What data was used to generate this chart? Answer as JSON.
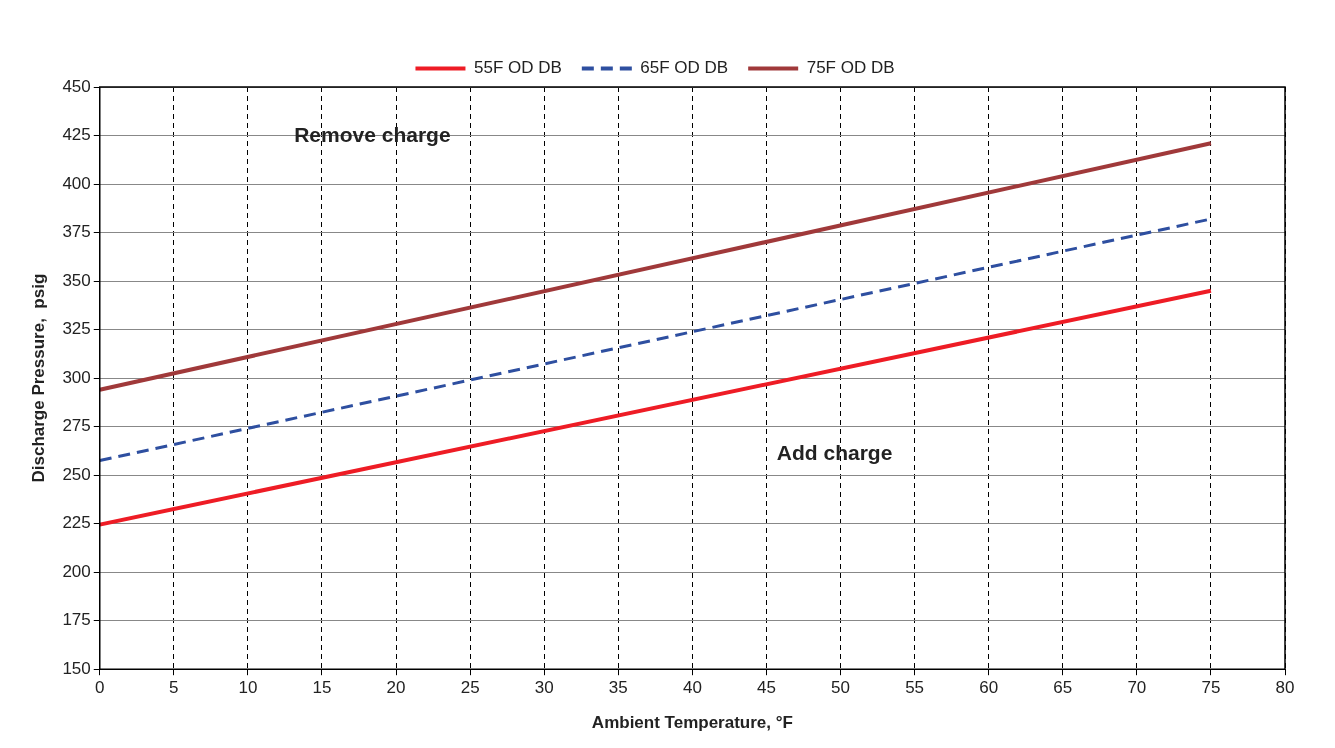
{
  "chart_data": {
    "type": "line",
    "xlabel": "Ambient Temperature, °F",
    "ylabel": "Discharge Pressure,  psig",
    "xlim": [
      0,
      80
    ],
    "xticks": [
      0,
      5,
      10,
      15,
      20,
      25,
      30,
      35,
      40,
      45,
      50,
      55,
      60,
      65,
      70,
      75,
      80
    ],
    "ylim": [
      150,
      450
    ],
    "yticks": [
      150,
      175,
      200,
      225,
      250,
      275,
      300,
      325,
      350,
      375,
      400,
      425,
      450
    ],
    "x": [
      0,
      75
    ],
    "grid": true,
    "legend": "top",
    "marker": "none",
    "series": [
      {
        "name": "55F OD DB",
        "color": "#ee1c25",
        "values": [
          224.5,
          345
        ],
        "line_style": "solid"
      },
      {
        "name": "65F OD DB",
        "color": "#2e4fa0",
        "values": [
          257.5,
          382
        ],
        "line_style": "dashed"
      },
      {
        "name": "75F OD DB",
        "color": "#a0393a",
        "values": [
          294,
          421
        ],
        "line_style": "solid"
      }
    ],
    "annotations": [
      "Remove charge",
      "Add charge"
    ]
  }
}
